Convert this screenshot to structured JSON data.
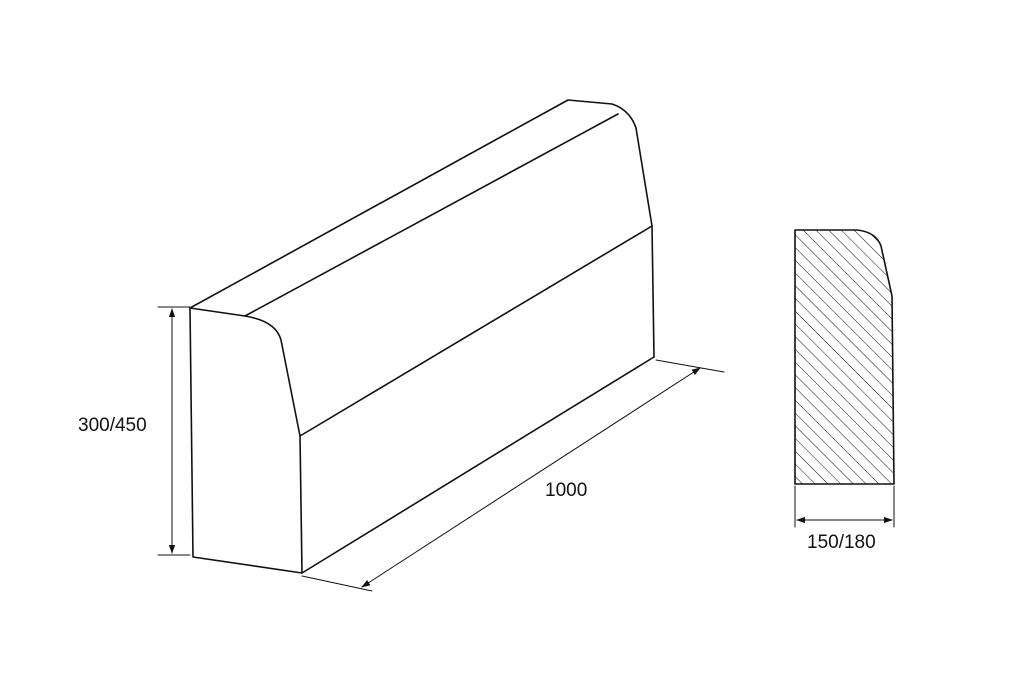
{
  "dimensions": {
    "height_label": "300/450",
    "length_label": "1000",
    "width_label": "150/180"
  },
  "colors": {
    "line": "#111111",
    "background": "#ffffff"
  }
}
